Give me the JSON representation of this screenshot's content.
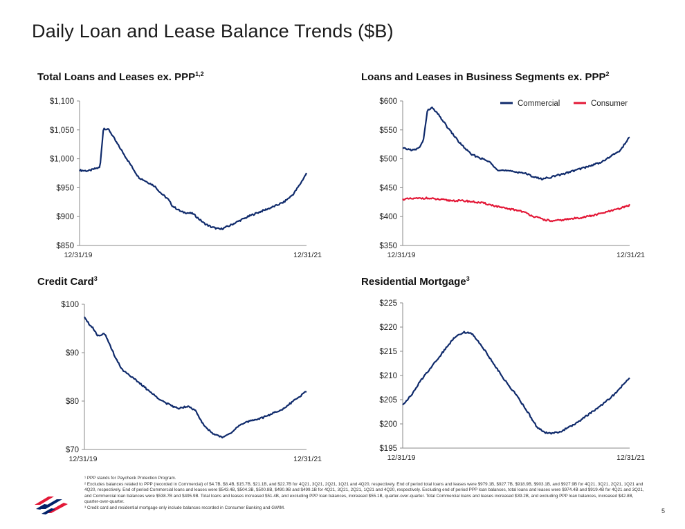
{
  "page": {
    "title": "Daily Loan and Lease Balance Trends ($B)",
    "page_number": "5"
  },
  "panels": {
    "total": {
      "title": "Total Loans and Leases ex. PPP",
      "sup": "1,2"
    },
    "business": {
      "title": "Loans and Leases in Business Segments ex. PPP",
      "sup": "2"
    },
    "credit": {
      "title": "Credit Card",
      "sup": "3"
    },
    "mortgage": {
      "title": "Residential Mortgage",
      "sup": "3"
    }
  },
  "footnotes": [
    "¹ PPP stands for Paycheck Protection Program.",
    "² Excludes balances related to PPP (recorded in Commercial) of $4.7B, $8.4B, $15.7B, $21.1B, and $22.7B for 4Q21, 3Q21, 2Q21, 1Q21 and 4Q20, respectively. End of period total loans and leases were $979.1B, $927.7B, $918.9B, $903.1B, and $927.9B for 4Q21, 3Q21, 2Q21, 1Q21 and 4Q20, respectively. End of period Commercial loans and leases were $543.4B, $504.3B, $500.8B, $490.9B and $499.1B for 4Q21, 3Q21, 2Q21, 1Q21 and 4Q20, respectively. Excluding end of period PPP loan balances, total loans and leases were $974.4B and $919.4B for 4Q21 and 3Q21, and Commercial loan balances were $538.7B and $495.9B. Total loans and leases increased $51.4B, and excluding PPP loan balances, increased $55.1B, quarter-over-quarter. Total Commercial loans and leases increased $39.2B, and excluding PPP loan balances, increased $42.8B, quarter-over-quarter.",
    "³ Credit card and residential mortgage only include balances recorded in Consumer Banking and GWIM."
  ],
  "colors": {
    "commercial": "#0f2a6b",
    "consumer": "#e31837",
    "axis": "#888888",
    "logo_red": "#e31837",
    "logo_blue": "#012169"
  },
  "logo": {
    "icon": "flag-icon"
  },
  "chart_data": [
    {
      "id": "total",
      "type": "line",
      "title": "Total Loans and Leases ex. PPP",
      "x_labels": [
        "12/31/19",
        "12/31/21"
      ],
      "ylim": [
        850,
        1100
      ],
      "yticks": [
        "$850",
        "$900",
        "$950",
        "$1,000",
        "$1,050",
        "$1,100"
      ],
      "grid": false,
      "series": [
        {
          "color": "#0f2a6b",
          "points": [
            [
              0,
              980
            ],
            [
              0.04,
              979
            ],
            [
              0.07,
              983
            ],
            [
              0.09,
              985
            ],
            [
              0.105,
              1053
            ],
            [
              0.13,
              1050
            ],
            [
              0.16,
              1030
            ],
            [
              0.2,
              1005
            ],
            [
              0.26,
              968
            ],
            [
              0.33,
              953
            ],
            [
              0.36,
              940
            ],
            [
              0.39,
              930
            ],
            [
              0.41,
              918
            ],
            [
              0.45,
              908
            ],
            [
              0.5,
              905
            ],
            [
              0.52,
              898
            ],
            [
              0.55,
              888
            ],
            [
              0.58,
              882
            ],
            [
              0.62,
              878
            ],
            [
              0.66,
              884
            ],
            [
              0.7,
              892
            ],
            [
              0.76,
              903
            ],
            [
              0.82,
              912
            ],
            [
              0.86,
              918
            ],
            [
              0.9,
              925
            ],
            [
              0.94,
              938
            ],
            [
              0.97,
              955
            ],
            [
              1.0,
              975
            ]
          ]
        }
      ]
    },
    {
      "id": "business",
      "type": "line",
      "title": "Loans and Leases in Business Segments ex. PPP",
      "x_labels": [
        "12/31/19",
        "12/31/21"
      ],
      "ylim": [
        350,
        600
      ],
      "yticks": [
        "$350",
        "$400",
        "$450",
        "$500",
        "$550",
        "$600"
      ],
      "legend_position": "top-right",
      "grid": false,
      "series": [
        {
          "name": "Commercial",
          "color": "#0f2a6b",
          "points": [
            [
              0,
              518
            ],
            [
              0.03,
              516
            ],
            [
              0.05,
              515
            ],
            [
              0.07,
              518
            ],
            [
              0.09,
              530
            ],
            [
              0.11,
              585
            ],
            [
              0.13,
              588
            ],
            [
              0.16,
              575
            ],
            [
              0.2,
              553
            ],
            [
              0.25,
              528
            ],
            [
              0.3,
              508
            ],
            [
              0.35,
              500
            ],
            [
              0.38,
              495
            ],
            [
              0.42,
              481
            ],
            [
              0.48,
              478
            ],
            [
              0.53,
              476
            ],
            [
              0.57,
              470
            ],
            [
              0.61,
              465
            ],
            [
              0.65,
              468
            ],
            [
              0.7,
              473
            ],
            [
              0.76,
              480
            ],
            [
              0.82,
              487
            ],
            [
              0.88,
              495
            ],
            [
              0.92,
              505
            ],
            [
              0.96,
              515
            ],
            [
              1.0,
              538
            ]
          ]
        },
        {
          "name": "Consumer",
          "color": "#e31837",
          "points": [
            [
              0,
              430
            ],
            [
              0.05,
              431
            ],
            [
              0.1,
              432
            ],
            [
              0.15,
              430
            ],
            [
              0.2,
              428
            ],
            [
              0.28,
              427
            ],
            [
              0.36,
              423
            ],
            [
              0.44,
              415
            ],
            [
              0.52,
              410
            ],
            [
              0.58,
              400
            ],
            [
              0.62,
              395
            ],
            [
              0.66,
              392
            ],
            [
              0.72,
              395
            ],
            [
              0.78,
              398
            ],
            [
              0.84,
              402
            ],
            [
              0.9,
              408
            ],
            [
              0.95,
              413
            ],
            [
              1.0,
              420
            ]
          ]
        }
      ]
    },
    {
      "id": "credit",
      "type": "line",
      "title": "Credit Card",
      "x_labels": [
        "12/31/19",
        "12/31/21"
      ],
      "ylim": [
        70,
        100
      ],
      "yticks": [
        "$70",
        "$80",
        "$90",
        "$100"
      ],
      "grid": false,
      "series": [
        {
          "color": "#0f2a6b",
          "points": [
            [
              0,
              97.5
            ],
            [
              0.02,
              96
            ],
            [
              0.04,
              95
            ],
            [
              0.06,
              93.5
            ],
            [
              0.09,
              94
            ],
            [
              0.11,
              92
            ],
            [
              0.14,
              89
            ],
            [
              0.17,
              86.5
            ],
            [
              0.2,
              85.5
            ],
            [
              0.24,
              84
            ],
            [
              0.28,
              82.5
            ],
            [
              0.32,
              81
            ],
            [
              0.37,
              79.5
            ],
            [
              0.42,
              78.5
            ],
            [
              0.47,
              79
            ],
            [
              0.5,
              78
            ],
            [
              0.53,
              75.5
            ],
            [
              0.56,
              74
            ],
            [
              0.59,
              73
            ],
            [
              0.62,
              72.5
            ],
            [
              0.66,
              73.5
            ],
            [
              0.7,
              75
            ],
            [
              0.75,
              76
            ],
            [
              0.8,
              76.5
            ],
            [
              0.85,
              77.5
            ],
            [
              0.9,
              78.5
            ],
            [
              0.94,
              80
            ],
            [
              0.97,
              81
            ],
            [
              1.0,
              82
            ]
          ]
        }
      ]
    },
    {
      "id": "mortgage",
      "type": "line",
      "title": "Residential Mortgage",
      "x_labels": [
        "12/31/19",
        "12/31/21"
      ],
      "ylim": [
        195,
        225
      ],
      "yticks": [
        "$195",
        "$200",
        "$205",
        "$210",
        "$215",
        "$220",
        "$225"
      ],
      "grid": false,
      "series": [
        {
          "color": "#0f2a6b",
          "points": [
            [
              0,
              204
            ],
            [
              0.04,
              206
            ],
            [
              0.08,
              209
            ],
            [
              0.13,
              212
            ],
            [
              0.18,
              215
            ],
            [
              0.23,
              218
            ],
            [
              0.27,
              219
            ],
            [
              0.31,
              218.5
            ],
            [
              0.35,
              216
            ],
            [
              0.4,
              212.5
            ],
            [
              0.45,
              209
            ],
            [
              0.5,
              206
            ],
            [
              0.55,
              202.5
            ],
            [
              0.59,
              199.5
            ],
            [
              0.62,
              198.3
            ],
            [
              0.65,
              198
            ],
            [
              0.7,
              198.5
            ],
            [
              0.76,
              200
            ],
            [
              0.82,
              202
            ],
            [
              0.88,
              204
            ],
            [
              0.93,
              206
            ],
            [
              0.97,
              208
            ],
            [
              1.0,
              209.5
            ]
          ]
        }
      ]
    }
  ]
}
